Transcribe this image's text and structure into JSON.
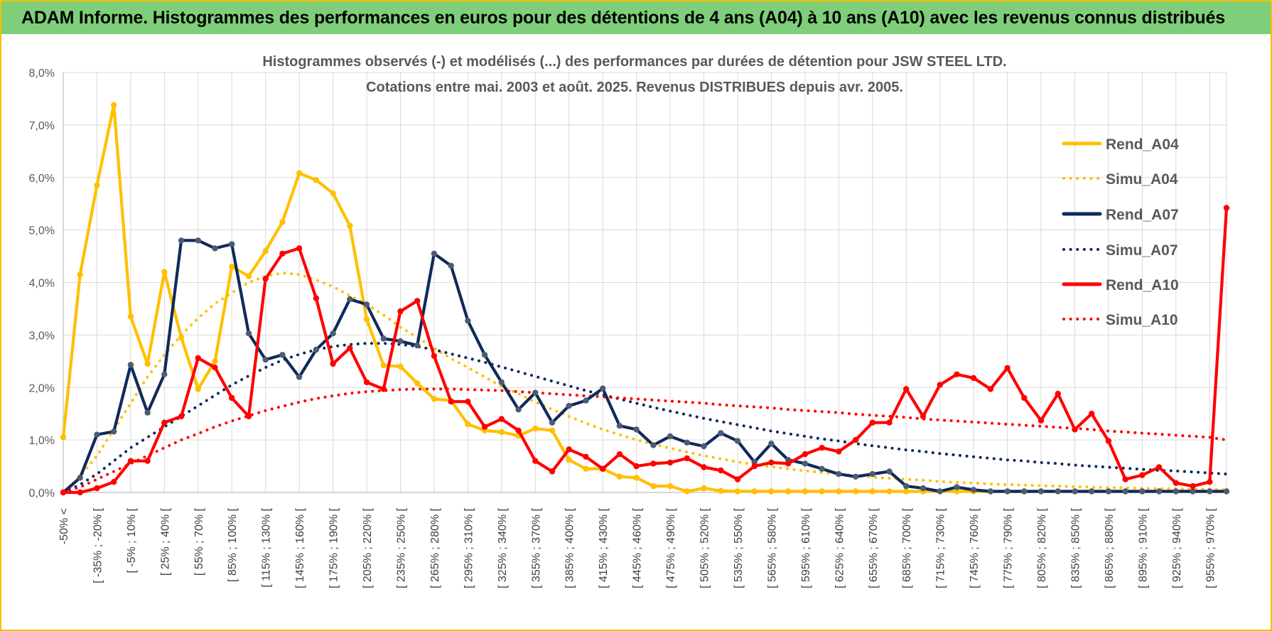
{
  "page": {
    "banner_title": "ADAM Informe. Histogrammes des performances en euros pour des détentions de 4 ans (A04) à 10 ans (A10) avec les revenus connus distribués",
    "frame_color": "#f2c200",
    "banner_color": "#7fcf7a"
  },
  "chart_data": {
    "type": "line",
    "title": "Histogrammes observés (-) et modélisés (...) des performances par durées de détention pour JSW STEEL LTD.",
    "subtitle": "Cotations entre mai. 2003 et août. 2025. Revenus DISTRIBUES depuis avr. 2005.",
    "ylim": [
      0,
      8
    ],
    "y_ticks": [
      "0,0%",
      "1,0%",
      "2,0%",
      "3,0%",
      "4,0%",
      "5,0%",
      "6,0%",
      "7,0%",
      "8,0%"
    ],
    "x_tick_labels": [
      "-50% <",
      "[ -35% ; -20% [",
      "[ -5% ; 10% [",
      "[ 25% ; 40% [",
      "[ 55% ; 70% [",
      "[ 85% ; 100% [",
      "[ 115% ; 130% [",
      "[ 145% ; 160% [",
      "[ 175% ; 190% [",
      "[ 205% ; 220% [",
      "[ 235% ; 250% [",
      "[ 265% ; 280% [",
      "[ 295% ; 310% [",
      "[ 325% ; 340% [",
      "[ 355% ; 370% [",
      "[ 385% ; 400% [",
      "[ 415% ; 430% [",
      "[ 445% ; 460% [",
      "[ 475% ; 490% [",
      "[ 505% ; 520% [",
      "[ 535% ; 550% [",
      "[ 565% ; 580% [",
      "[ 595% ; 610% [",
      "[ 625% ; 640% [",
      "[ 655% ; 670% [",
      "[ 685% ; 700% [",
      "[ 715% ; 730% [",
      "[ 745% ; 760% [",
      "[ 775% ; 790% [",
      "[ 805% ; 820% [",
      "[ 835% ; 850% [",
      "[ 865% ; 880% [",
      "[ 895% ; 910% [",
      "[ 925% ; 940% [",
      "[ 955% ; 970% ["
    ],
    "grid": true,
    "legend_position": "top-right",
    "series": [
      {
        "name": "Rend_A04",
        "style": "solid",
        "color": "#ffc000",
        "values": [
          1.05,
          4.15,
          5.85,
          7.38,
          3.35,
          2.45,
          4.2,
          2.95,
          1.97,
          2.5,
          4.3,
          4.12,
          4.6,
          5.15,
          6.08,
          5.95,
          5.7,
          5.08,
          3.3,
          2.42,
          2.4,
          2.08,
          1.78,
          1.75,
          1.3,
          1.18,
          1.15,
          1.08,
          1.22,
          1.18,
          0.62,
          0.45,
          0.45,
          0.3,
          0.28,
          0.12,
          0.12,
          0.02,
          0.08,
          0.03,
          0.02,
          0.02,
          0.02,
          0.02,
          0.02,
          0.02,
          0.02,
          0.02,
          0.02,
          0.02,
          0.02,
          0.02,
          0.02,
          0.02,
          0.02,
          0.02,
          0.02,
          0.02,
          0.02,
          0.02,
          0.02,
          0.02,
          0.02,
          0.02,
          0.02,
          0.02,
          0.02,
          0.02,
          0.02,
          0.02
        ]
      },
      {
        "name": "Simu_A04",
        "style": "dotted",
        "color": "#ffc000",
        "values": [
          0.0,
          0.3,
          0.7,
          1.2,
          1.7,
          2.2,
          2.62,
          3.0,
          3.32,
          3.6,
          3.8,
          4.0,
          4.12,
          4.18,
          4.15,
          4.05,
          3.92,
          3.75,
          3.58,
          3.38,
          3.15,
          2.95,
          2.75,
          2.55,
          2.38,
          2.2,
          2.02,
          1.88,
          1.72,
          1.58,
          1.45,
          1.32,
          1.2,
          1.1,
          1.0,
          0.92,
          0.84,
          0.77,
          0.7,
          0.64,
          0.58,
          0.53,
          0.49,
          0.45,
          0.41,
          0.38,
          0.35,
          0.32,
          0.29,
          0.27,
          0.25,
          0.23,
          0.21,
          0.19,
          0.18,
          0.16,
          0.15,
          0.14,
          0.13,
          0.12,
          0.11,
          0.1,
          0.09,
          0.09,
          0.08,
          0.07,
          0.07,
          0.06,
          0.06,
          0.05
        ]
      },
      {
        "name": "Rend_A07",
        "style": "solid",
        "color": "#0f2a5c",
        "values": [
          0.0,
          0.28,
          1.1,
          1.16,
          2.43,
          1.52,
          2.25,
          4.8,
          4.8,
          4.65,
          4.73,
          3.03,
          2.53,
          2.62,
          2.2,
          2.72,
          3.03,
          3.68,
          3.58,
          2.93,
          2.88,
          2.8,
          4.55,
          4.32,
          3.27,
          2.62,
          2.1,
          1.58,
          1.9,
          1.33,
          1.65,
          1.75,
          1.98,
          1.27,
          1.2,
          0.9,
          1.07,
          0.95,
          0.88,
          1.13,
          0.98,
          0.58,
          0.93,
          0.62,
          0.55,
          0.45,
          0.35,
          0.3,
          0.35,
          0.4,
          0.12,
          0.08,
          0.02,
          0.1,
          0.05,
          0.02,
          0.02,
          0.02,
          0.02,
          0.02,
          0.02,
          0.02,
          0.02,
          0.02,
          0.02,
          0.02,
          0.02,
          0.02,
          0.02,
          0.02
        ]
      },
      {
        "name": "Simu_A07",
        "style": "dotted",
        "color": "#0f2a5c",
        "values": [
          0.0,
          0.15,
          0.35,
          0.6,
          0.85,
          1.05,
          1.25,
          1.45,
          1.65,
          1.85,
          2.05,
          2.22,
          2.38,
          2.52,
          2.63,
          2.72,
          2.78,
          2.82,
          2.84,
          2.84,
          2.82,
          2.78,
          2.72,
          2.64,
          2.56,
          2.48,
          2.39,
          2.3,
          2.21,
          2.12,
          2.03,
          1.94,
          1.86,
          1.78,
          1.7,
          1.62,
          1.55,
          1.48,
          1.41,
          1.35,
          1.29,
          1.23,
          1.17,
          1.12,
          1.07,
          1.02,
          0.98,
          0.93,
          0.89,
          0.85,
          0.81,
          0.78,
          0.74,
          0.71,
          0.68,
          0.65,
          0.62,
          0.6,
          0.57,
          0.55,
          0.52,
          0.5,
          0.48,
          0.46,
          0.44,
          0.42,
          0.41,
          0.39,
          0.37,
          0.35
        ]
      },
      {
        "name": "Rend_A10",
        "style": "solid",
        "color": "#ff0000",
        "values": [
          0.0,
          0.0,
          0.08,
          0.2,
          0.6,
          0.6,
          1.33,
          1.45,
          2.56,
          2.38,
          1.8,
          1.45,
          4.07,
          4.55,
          4.65,
          3.7,
          2.45,
          2.75,
          2.1,
          1.97,
          3.45,
          3.65,
          2.6,
          1.73,
          1.73,
          1.25,
          1.4,
          1.18,
          0.6,
          0.4,
          0.82,
          0.68,
          0.45,
          0.73,
          0.5,
          0.55,
          0.57,
          0.65,
          0.48,
          0.42,
          0.25,
          0.5,
          0.57,
          0.55,
          0.73,
          0.85,
          0.78,
          1.0,
          1.33,
          1.33,
          1.97,
          1.45,
          2.05,
          2.25,
          2.18,
          1.97,
          2.37,
          1.8,
          1.37,
          1.88,
          1.2,
          1.5,
          0.98,
          0.25,
          0.33,
          0.48,
          0.18,
          0.12,
          0.2,
          5.42
        ]
      },
      {
        "name": "Simu_A10",
        "style": "dotted",
        "color": "#ff0000",
        "values": [
          0.0,
          0.1,
          0.25,
          0.4,
          0.55,
          0.7,
          0.85,
          1.0,
          1.12,
          1.25,
          1.36,
          1.46,
          1.56,
          1.64,
          1.72,
          1.79,
          1.84,
          1.89,
          1.92,
          1.94,
          1.96,
          1.97,
          1.97,
          1.97,
          1.96,
          1.95,
          1.94,
          1.92,
          1.9,
          1.88,
          1.86,
          1.84,
          1.82,
          1.8,
          1.78,
          1.76,
          1.74,
          1.72,
          1.7,
          1.67,
          1.65,
          1.63,
          1.61,
          1.58,
          1.56,
          1.54,
          1.52,
          1.49,
          1.47,
          1.45,
          1.43,
          1.4,
          1.38,
          1.36,
          1.34,
          1.32,
          1.3,
          1.28,
          1.26,
          1.24,
          1.22,
          1.2,
          1.17,
          1.15,
          1.13,
          1.11,
          1.09,
          1.07,
          1.05,
          1.0
        ]
      }
    ]
  }
}
